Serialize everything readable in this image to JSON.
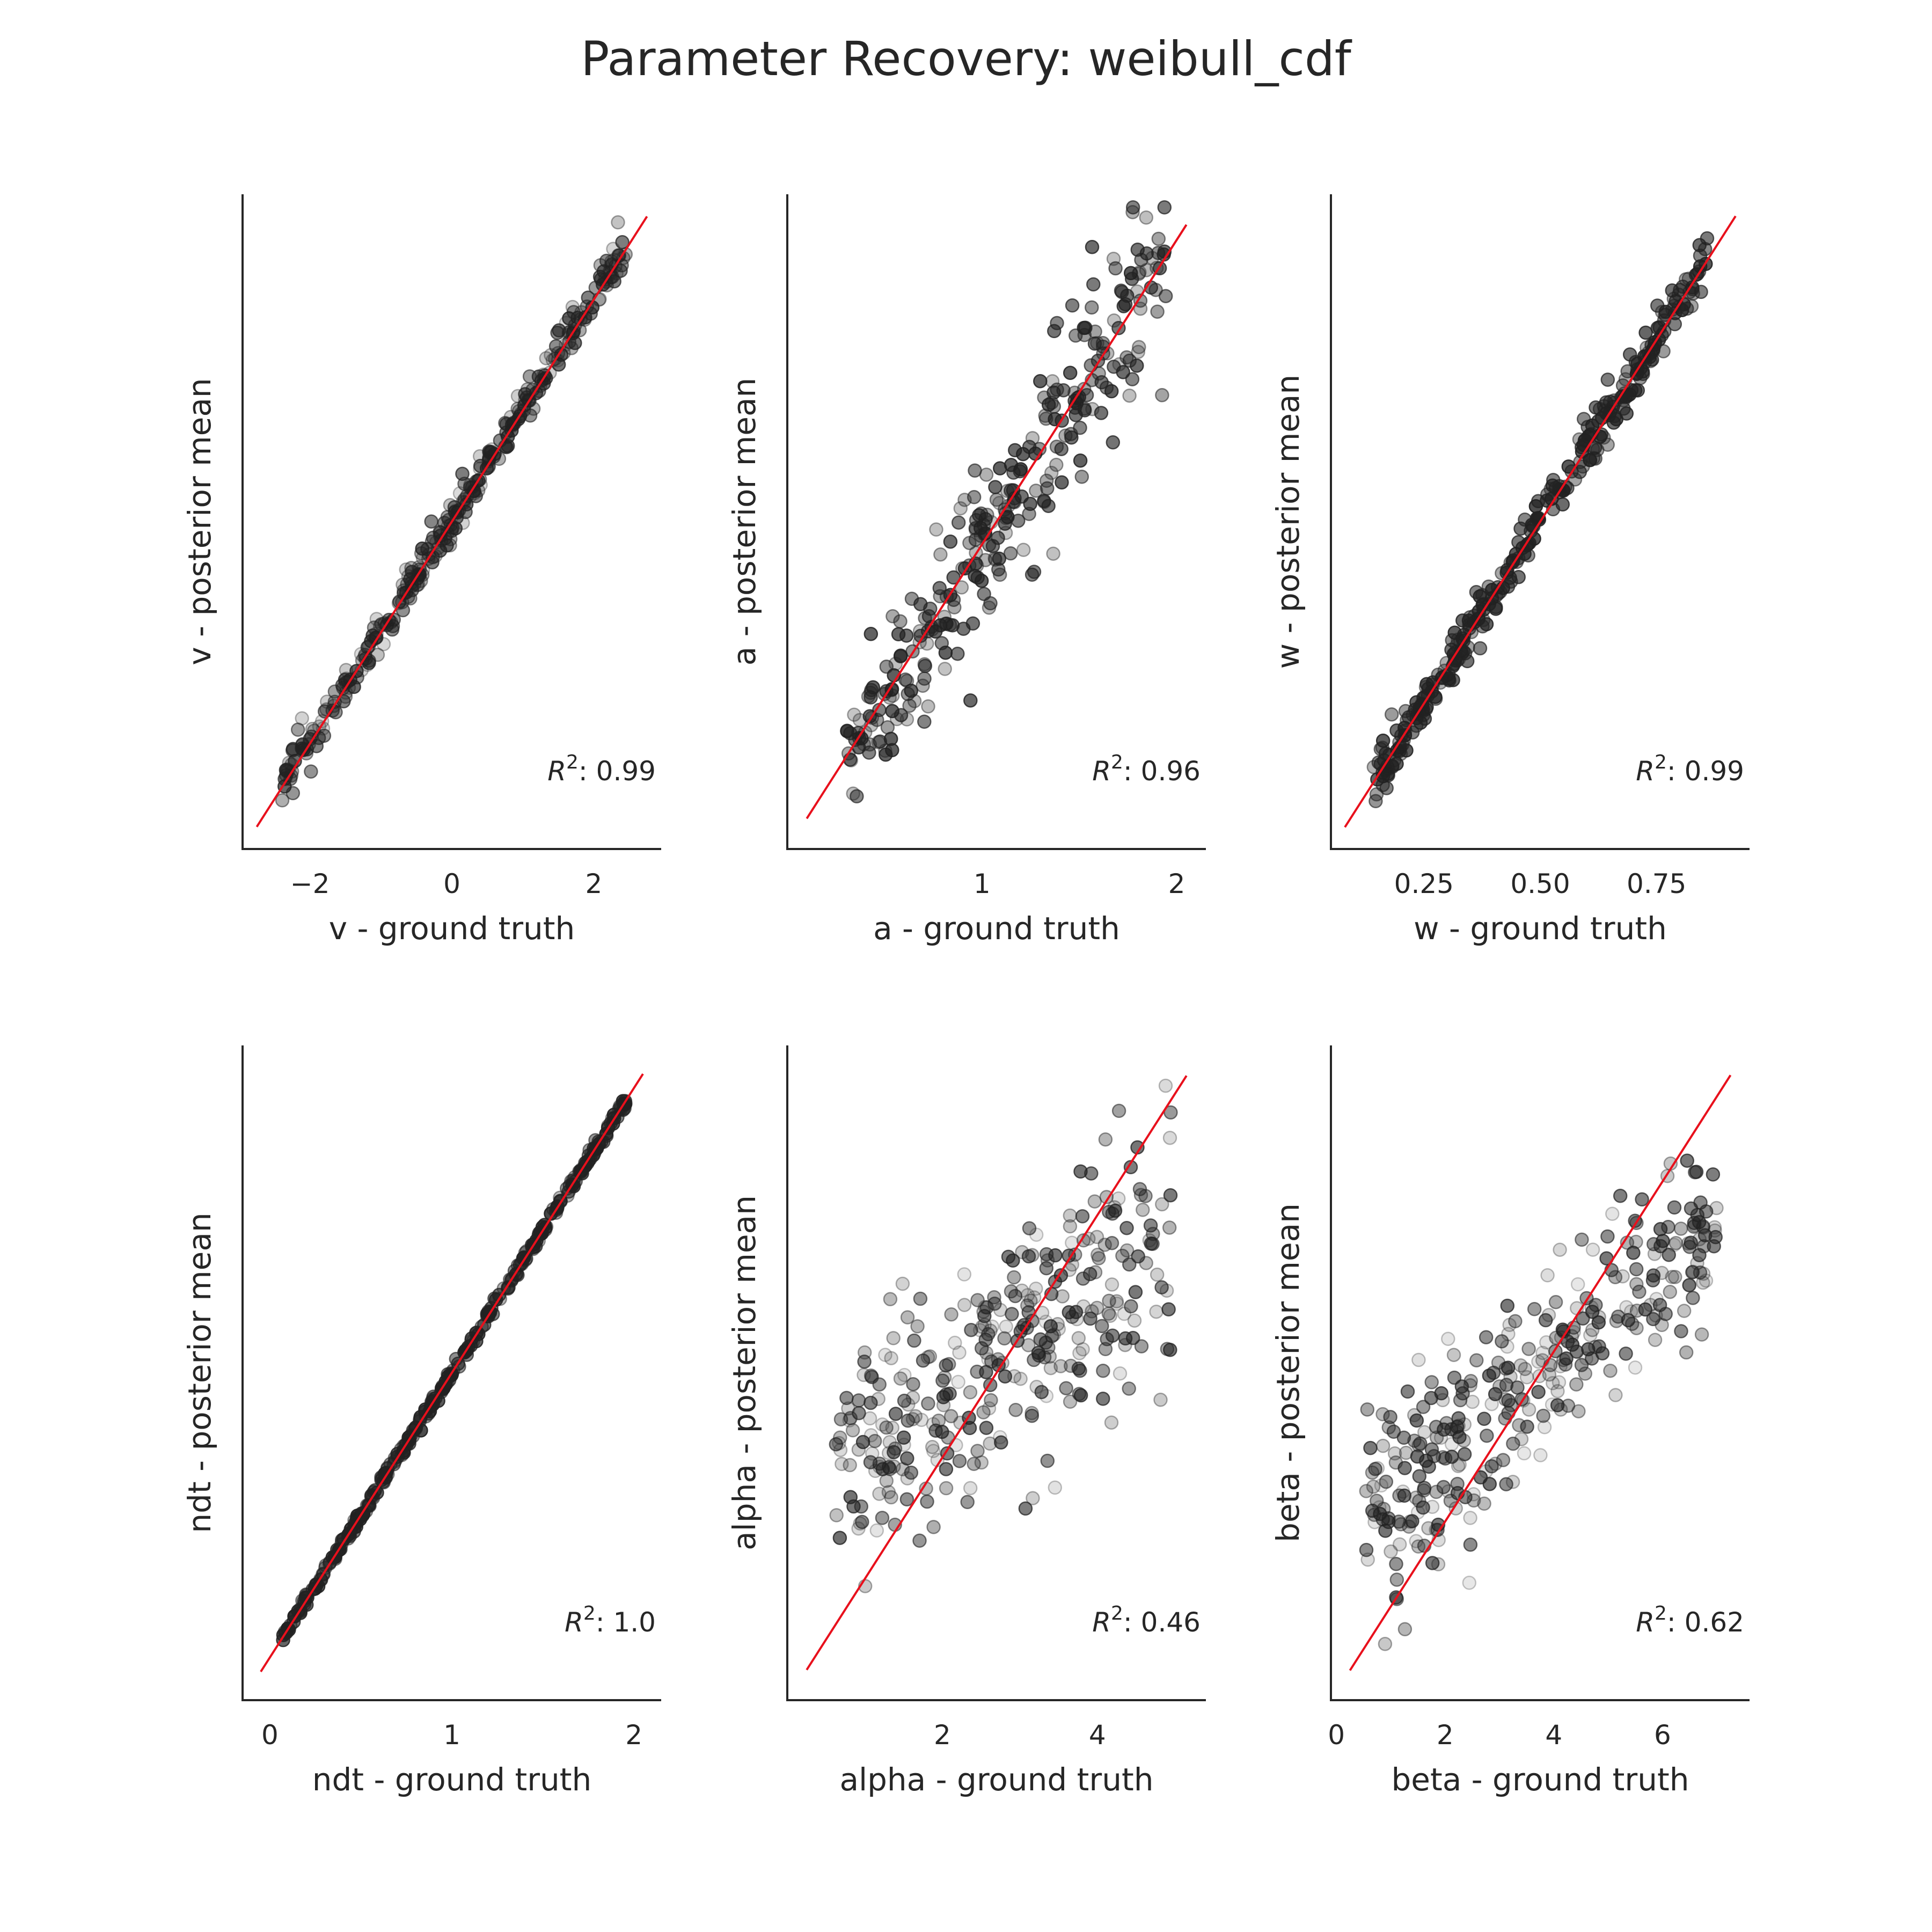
{
  "figure": {
    "title": "Parameter Recovery: weibull_cdf"
  },
  "colors": {
    "identity_line": "#e8101c",
    "points": "#222222"
  },
  "chart_data": [
    {
      "type": "scatter",
      "param": "v",
      "xlabel": "v - ground truth",
      "ylabel": "v - posterior mean",
      "r2_label": ": 0.99",
      "xlim": [
        -2.95,
        2.95
      ],
      "ylim": [
        -2.95,
        2.95
      ],
      "xticks": [
        -2,
        0,
        2
      ],
      "xtick_labels": [
        "−2",
        "0",
        "2"
      ],
      "identity_range": [
        -2.75,
        2.75
      ],
      "sample": {
        "n": 320,
        "xmin": -2.45,
        "xmax": 2.45,
        "noise": 0.09,
        "bias": 0.02,
        "alpha_min": 0.15,
        "alpha_max": 0.7,
        "seed": 11
      }
    },
    {
      "type": "scatter",
      "param": "a",
      "xlabel": "a - ground truth",
      "ylabel": "a - posterior mean",
      "r2_label": ": 0.96",
      "xlim": [
        0.0,
        2.15
      ],
      "ylim": [
        0.0,
        2.15
      ],
      "xticks": [
        1,
        2
      ],
      "xtick_labels": [
        "1",
        "2"
      ],
      "identity_range": [
        0.1,
        2.05
      ],
      "sample": {
        "n": 300,
        "xmin": 0.3,
        "xmax": 1.95,
        "noise": 0.09,
        "noise_slope": 0.6,
        "bias": 0.0,
        "alpha_min": 0.25,
        "alpha_max": 0.75,
        "seed": 23
      }
    },
    {
      "type": "scatter",
      "param": "w",
      "xlabel": "w - ground truth",
      "ylabel": "w - posterior mean",
      "r2_label": ": 0.99",
      "xlim": [
        0.05,
        0.95
      ],
      "ylim": [
        0.05,
        0.95
      ],
      "xticks": [
        0.25,
        0.5,
        0.75
      ],
      "xtick_labels": [
        "0.25",
        "0.50",
        "0.75"
      ],
      "identity_range": [
        0.08,
        0.92
      ],
      "sample": {
        "n": 320,
        "xmin": 0.14,
        "xmax": 0.86,
        "noise": 0.018,
        "bias": 0.0,
        "alpha_min": 0.35,
        "alpha_max": 0.8,
        "seed": 37
      }
    },
    {
      "type": "scatter",
      "param": "ndt",
      "xlabel": "ndt - ground truth",
      "ylabel": "ndt - posterior mean",
      "r2_label": ": 1.0",
      "xlim": [
        -0.15,
        2.15
      ],
      "ylim": [
        -0.15,
        2.15
      ],
      "xticks": [
        0,
        1,
        2
      ],
      "xtick_labels": [
        "0",
        "1",
        "2"
      ],
      "identity_range": [
        -0.05,
        2.05
      ],
      "sample": {
        "n": 320,
        "xmin": 0.05,
        "xmax": 1.97,
        "noise": 0.01,
        "bias": 0.0,
        "alpha_min": 0.3,
        "alpha_max": 0.8,
        "seed": 41
      }
    },
    {
      "type": "scatter",
      "param": "alpha",
      "xlabel": "alpha - ground truth",
      "ylabel": "alpha - posterior mean",
      "r2_label": ": 0.46",
      "xlim": [
        0.0,
        5.4
      ],
      "ylim": [
        0.0,
        5.4
      ],
      "xticks": [
        2,
        4
      ],
      "xtick_labels": [
        "2",
        "4"
      ],
      "identity_range": [
        0.25,
        5.15
      ],
      "sample": {
        "n": 330,
        "xmin": 0.6,
        "xmax": 4.95,
        "shrink": 0.45,
        "center": 2.9,
        "noise": 0.55,
        "bias": 0.0,
        "alpha_min": 0.1,
        "alpha_max": 0.65,
        "seed": 53
      }
    },
    {
      "type": "scatter",
      "param": "beta",
      "xlabel": "beta - ground truth",
      "ylabel": "beta - posterior mean",
      "r2_label": ": 0.62",
      "xlim": [
        -0.1,
        7.6
      ],
      "ylim": [
        -0.1,
        7.6
      ],
      "xticks": [
        0,
        2,
        4,
        6
      ],
      "xtick_labels": [
        "0",
        "2",
        "4",
        "6"
      ],
      "identity_range": [
        0.25,
        7.25
      ],
      "sample": {
        "n": 330,
        "xmin": 0.55,
        "xmax": 7.0,
        "shrink": 0.55,
        "center": 3.7,
        "noise": 0.5,
        "bias": 0.0,
        "alpha_min": 0.1,
        "alpha_max": 0.65,
        "seed": 67
      }
    }
  ]
}
